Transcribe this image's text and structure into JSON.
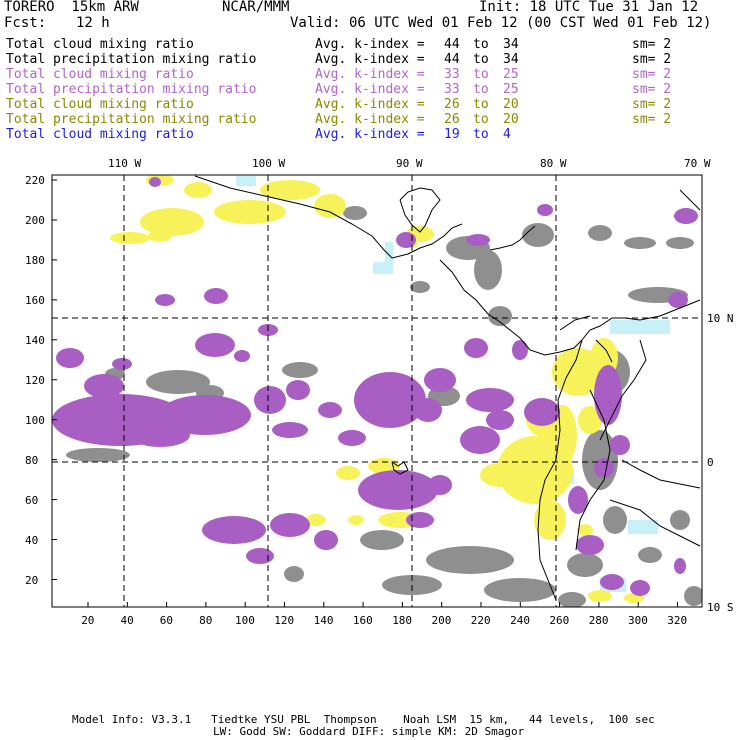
{
  "header": {
    "model": "TORERO  15km ARW",
    "org": "NCAR/MMM",
    "init": "Init: 18 UTC Tue 31 Jan 12",
    "fcst_label": "Fcst:",
    "fcst_value": "12 h",
    "valid": "Valid: 06 UTC Wed 01 Feb 12 (00 CST Wed 01 Feb 12)"
  },
  "legend": [
    {
      "field": "Total cloud mixing ratio",
      "kindex_label": "Avg. k-index =",
      "k_from": "44",
      "to": "to",
      "k_to": "34",
      "sm": "sm= 2",
      "color": "#000000"
    },
    {
      "field": "Total precipitation mixing ratio",
      "kindex_label": "Avg. k-index =",
      "k_from": "44",
      "to": "to",
      "k_to": "34",
      "sm": "sm= 2",
      "color": "#000000"
    },
    {
      "field": "Total cloud mixing ratio",
      "kindex_label": "Avg. k-index =",
      "k_from": "33",
      "to": "to",
      "k_to": "25",
      "sm": "sm= 2",
      "color": "#b266c8"
    },
    {
      "field": "Total precipitation mixing ratio",
      "kindex_label": "Avg. k-index =",
      "k_from": "33",
      "to": "to",
      "k_to": "25",
      "sm": "sm= 2",
      "color": "#b266c8"
    },
    {
      "field": "Total cloud mixing ratio",
      "kindex_label": "Avg. k-index =",
      "k_from": "26",
      "to": "to",
      "k_to": "20",
      "sm": "sm= 2",
      "color": "#8a8a00"
    },
    {
      "field": "Total precipitation mixing ratio",
      "kindex_label": "Avg. k-index =",
      "k_from": "26",
      "to": "to",
      "k_to": "20",
      "sm": "sm= 2",
      "color": "#8a8a00"
    },
    {
      "field": "Total cloud mixing ratio",
      "kindex_label": "Avg. k-index =",
      "k_from": "19",
      "to": "to",
      "k_to": "4",
      "sm": "",
      "color": "#2020e0"
    }
  ],
  "map": {
    "lon_labels": [
      "110 W",
      "100 W",
      "90 W",
      "80 W",
      "70 W"
    ],
    "lat_labels": [
      "10 N",
      "0",
      "10 S"
    ],
    "y_ticks": [
      "220",
      "200",
      "180",
      "160",
      "140",
      "120",
      "100",
      "80",
      "60",
      "40",
      "20"
    ],
    "x_ticks": [
      "20",
      "40",
      "60",
      "80",
      "100",
      "120",
      "140",
      "160",
      "180",
      "200",
      "220",
      "240",
      "260",
      "280",
      "300",
      "320"
    ],
    "colors": {
      "purple": "#a95ec4",
      "yellow": "#f7f25a",
      "gray": "#8f8f8f",
      "cyan": "#c8f0f8"
    }
  },
  "footer": {
    "line1": "Model Info: V3.3.1   Tiedtke YSU PBL  Thompson    Noah LSM  15 km,   44 levels,  100 sec",
    "line2": "LW: Godd SW: Goddard DIFF: simple KM: 2D Smagor"
  }
}
